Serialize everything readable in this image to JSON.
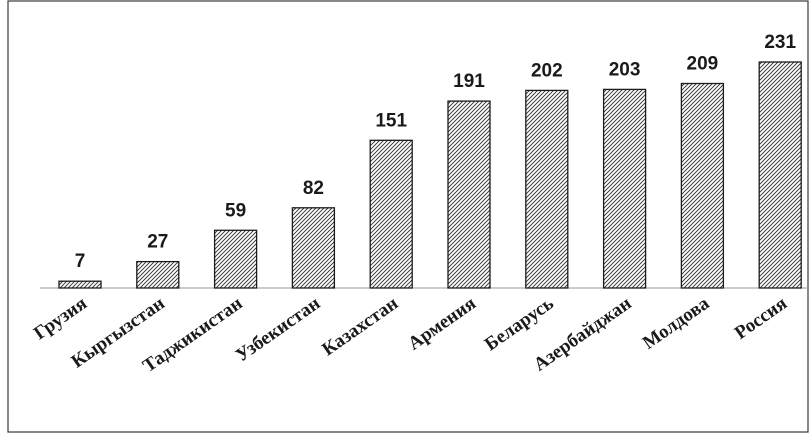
{
  "chart_data": {
    "type": "bar",
    "categories": [
      "Грузия",
      "Кыргызстан",
      "Таджикистан",
      "Узбекистан",
      "Казахстан",
      "Армения",
      "Беларусь",
      "Азербайджан",
      "Молдова",
      "Россия"
    ],
    "values": [
      7,
      27,
      59,
      82,
      151,
      191,
      202,
      203,
      209,
      231
    ],
    "title": "",
    "xlabel": "",
    "ylabel": "",
    "ylim": [
      0,
      240
    ],
    "grid": false,
    "legend": "none",
    "bar_fill": "hatched",
    "bar_stroke_color": "#1a1a1a",
    "data_labels": true
  }
}
